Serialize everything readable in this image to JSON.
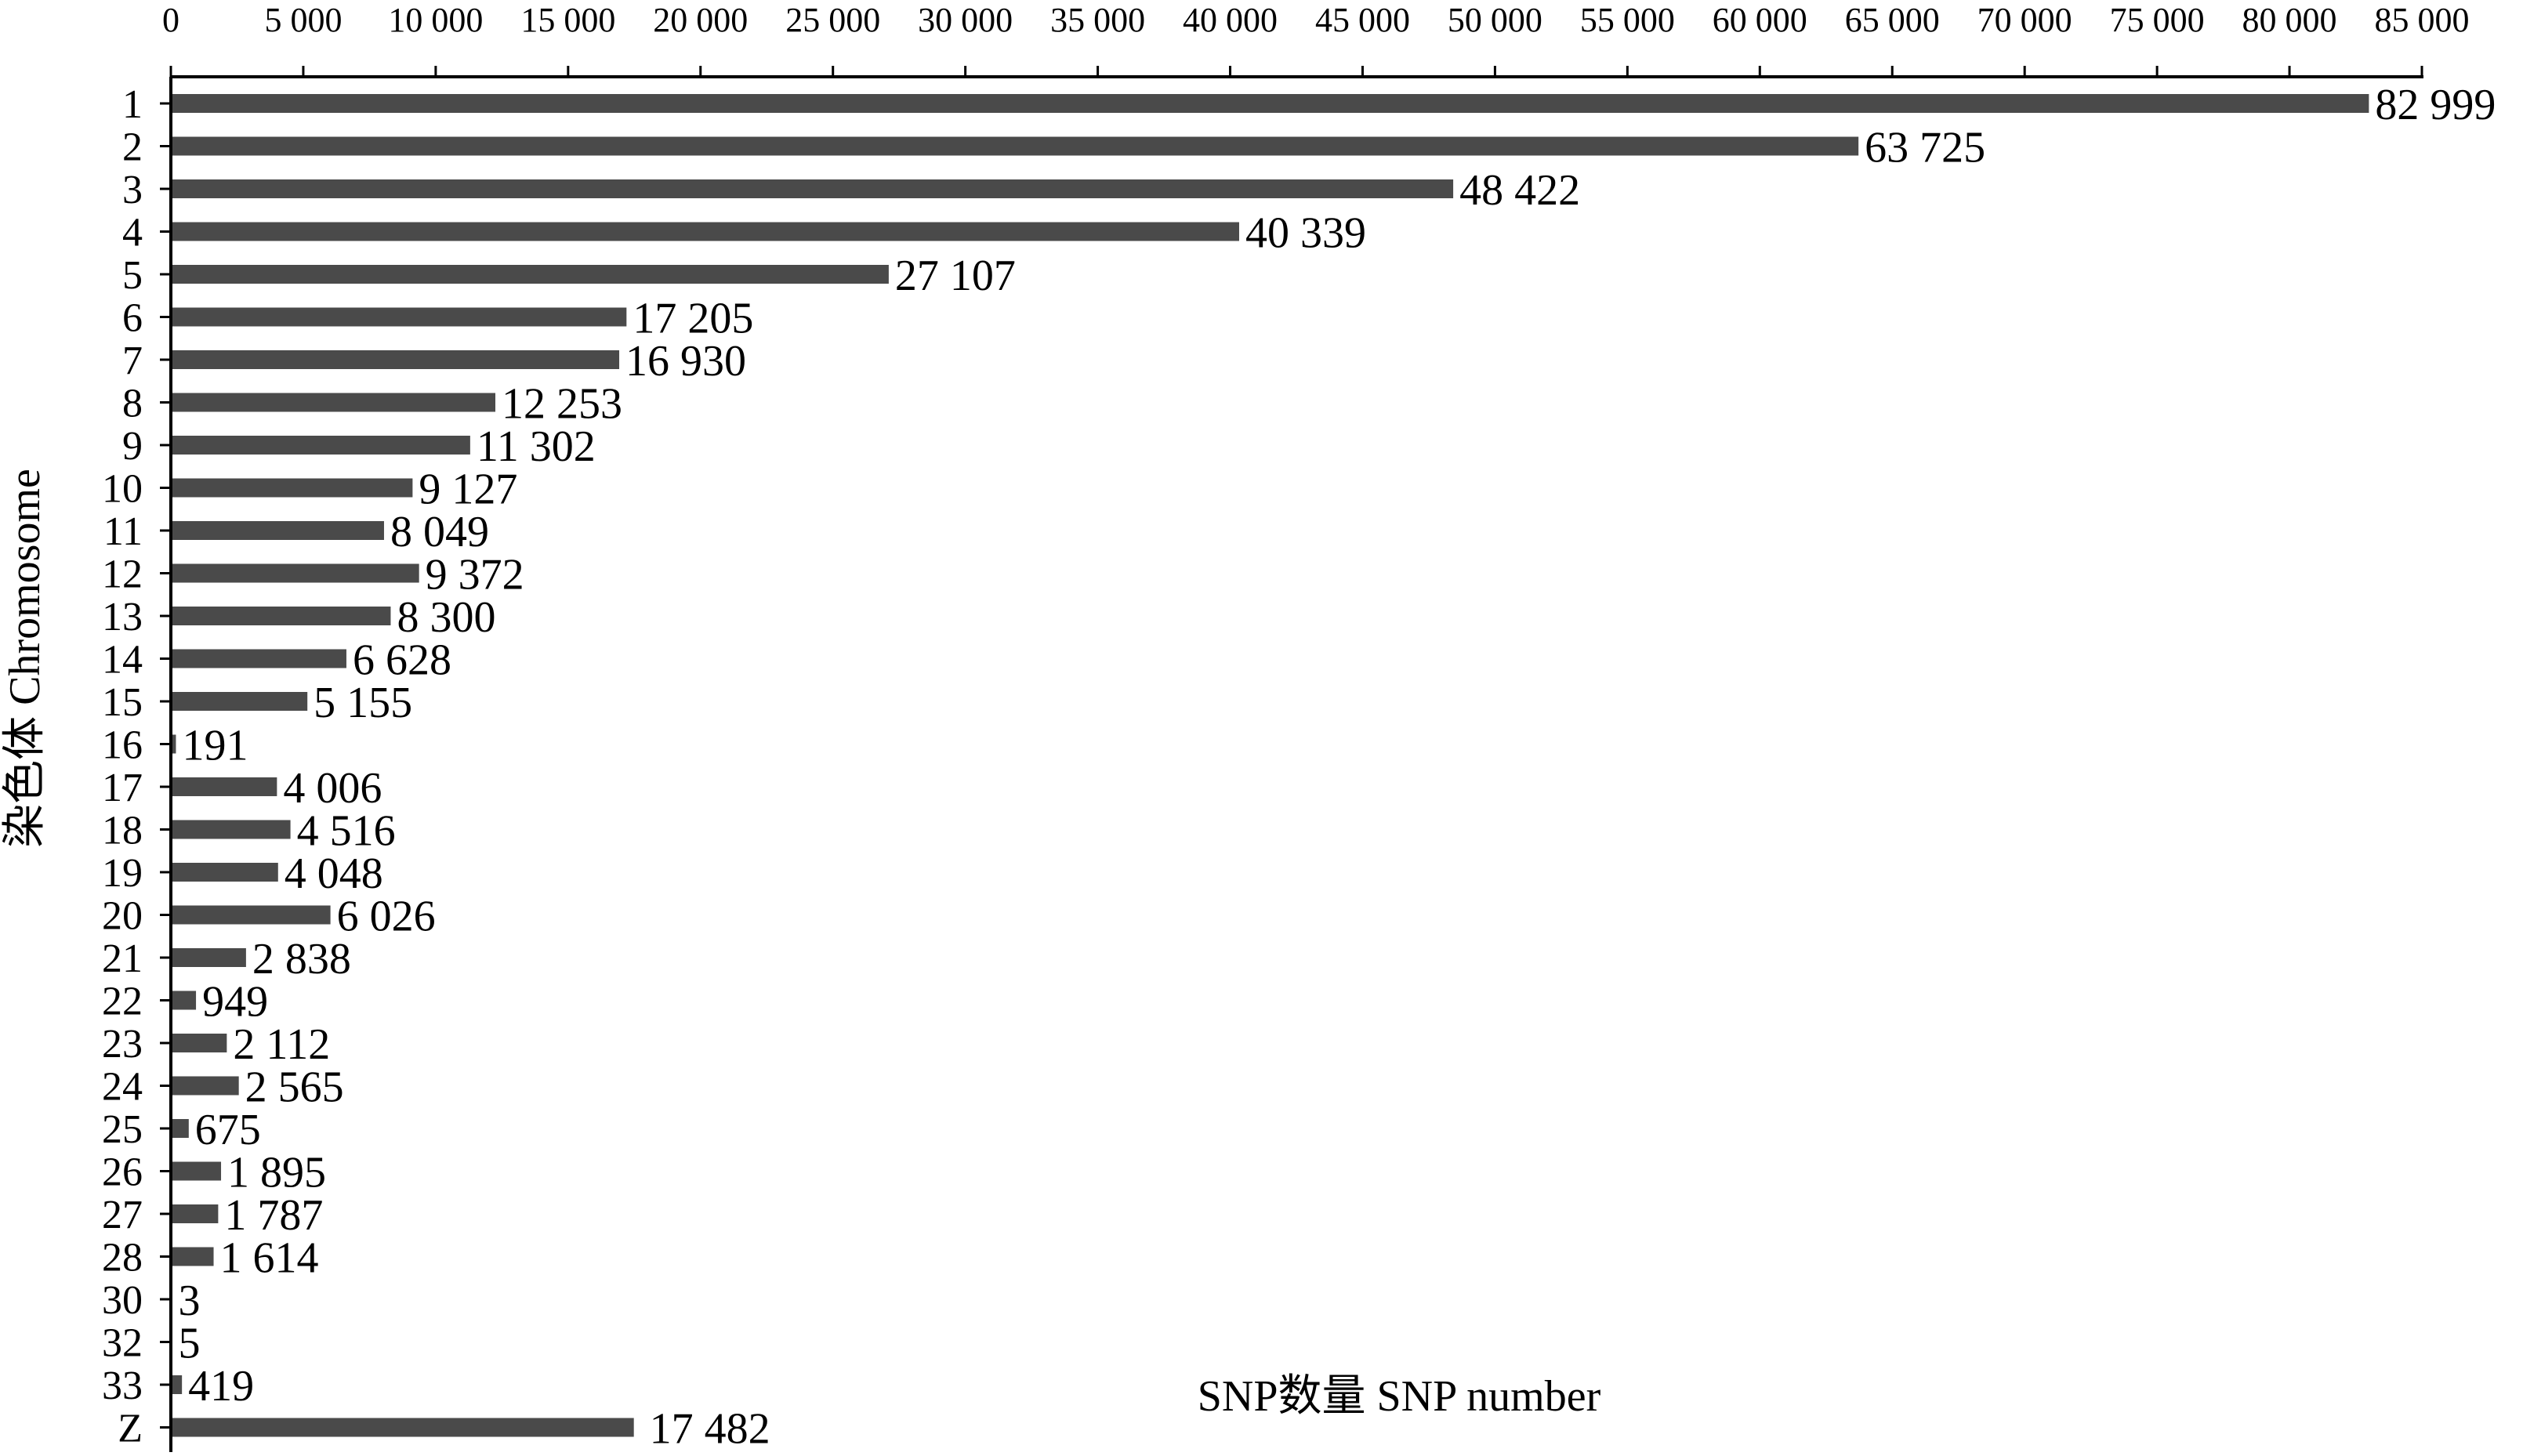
{
  "chart_data": {
    "type": "bar",
    "orientation": "horizontal",
    "title": "",
    "xlabel": "SNP数量 SNP number",
    "ylabel": "染色体 Chromosome",
    "xlim": [
      0,
      85000
    ],
    "x_axis_position": "top",
    "x_ticks": [
      "0",
      "5 000",
      "10 000",
      "15 000",
      "20 000",
      "25 000",
      "30 000",
      "35 000",
      "40 000",
      "45 000",
      "50 000",
      "55 000",
      "60 000",
      "65 000",
      "70 000",
      "75 000",
      "80 000",
      "85 000"
    ],
    "x_tick_values": [
      0,
      5000,
      10000,
      15000,
      20000,
      25000,
      30000,
      35000,
      40000,
      45000,
      50000,
      55000,
      60000,
      65000,
      70000,
      75000,
      80000,
      85000
    ],
    "categories": [
      "1",
      "2",
      "3",
      "4",
      "5",
      "6",
      "7",
      "8",
      "9",
      "10",
      "11",
      "12",
      "13",
      "14",
      "15",
      "16",
      "17",
      "18",
      "19",
      "20",
      "21",
      "22",
      "23",
      "24",
      "25",
      "26",
      "27",
      "28",
      "30",
      "32",
      "33",
      "Z"
    ],
    "values": [
      82999,
      63725,
      48422,
      40339,
      27107,
      17205,
      16930,
      12253,
      11302,
      9127,
      8049,
      9372,
      8300,
      6628,
      5155,
      191,
      4006,
      4516,
      4048,
      6026,
      2838,
      949,
      2112,
      2565,
      675,
      1895,
      1787,
      1614,
      3,
      5,
      419,
      17482
    ],
    "value_labels": [
      "82 999",
      "63 725",
      "48 422",
      "40 339",
      "27 107",
      "17 205",
      "16 930",
      "12 253",
      "11 302",
      "9 127",
      "8 049",
      "9 372",
      "8 300",
      "6 628",
      "5 155",
      "191",
      "4 006",
      "4 516",
      "4 048",
      "6 026",
      "2 838",
      "949",
      "2 112",
      "2 565",
      "675",
      "1 895",
      "1 787",
      "1 614",
      "3",
      "5",
      "419",
      "17 482"
    ],
    "grid": false,
    "legend": "none",
    "colors": {
      "bar": "#4a4a4a",
      "axis": "#000000",
      "background": "#ffffff"
    }
  }
}
